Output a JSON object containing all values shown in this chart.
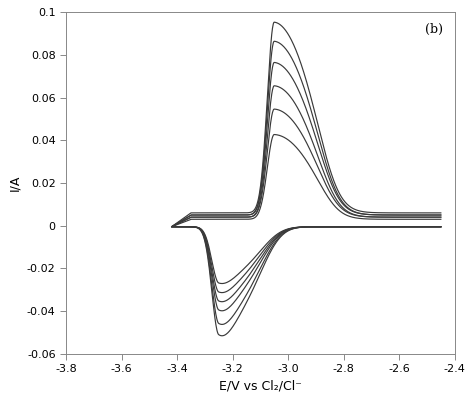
{
  "title": "(b)",
  "xlabel": "E/V vs Cl₂/Cl⁻",
  "ylabel": "I/A",
  "xlim": [
    -3.8,
    -2.4
  ],
  "ylim": [
    -0.06,
    0.1
  ],
  "xticks": [
    -3.8,
    -3.6,
    -3.4,
    -3.2,
    -3.0,
    -2.8,
    -2.6,
    -2.4
  ],
  "yticks": [
    -0.06,
    -0.04,
    -0.02,
    0.0,
    0.02,
    0.04,
    0.06,
    0.08,
    0.1
  ],
  "n_curves": 6,
  "background_color": "#ffffff",
  "line_color": "#3a3a3a",
  "line_width": 0.85,
  "peak_scales": [
    0.45,
    0.55,
    0.65,
    0.75,
    0.88,
    1.0
  ],
  "anodic_baselines": [
    0.003,
    0.004,
    0.004,
    0.005,
    0.005,
    0.006
  ],
  "cathodic_peaks": [
    -0.025,
    -0.029,
    -0.033,
    -0.037,
    -0.043,
    -0.048
  ],
  "anodic_peaks": [
    0.04,
    0.051,
    0.062,
    0.072,
    0.082,
    0.09
  ]
}
